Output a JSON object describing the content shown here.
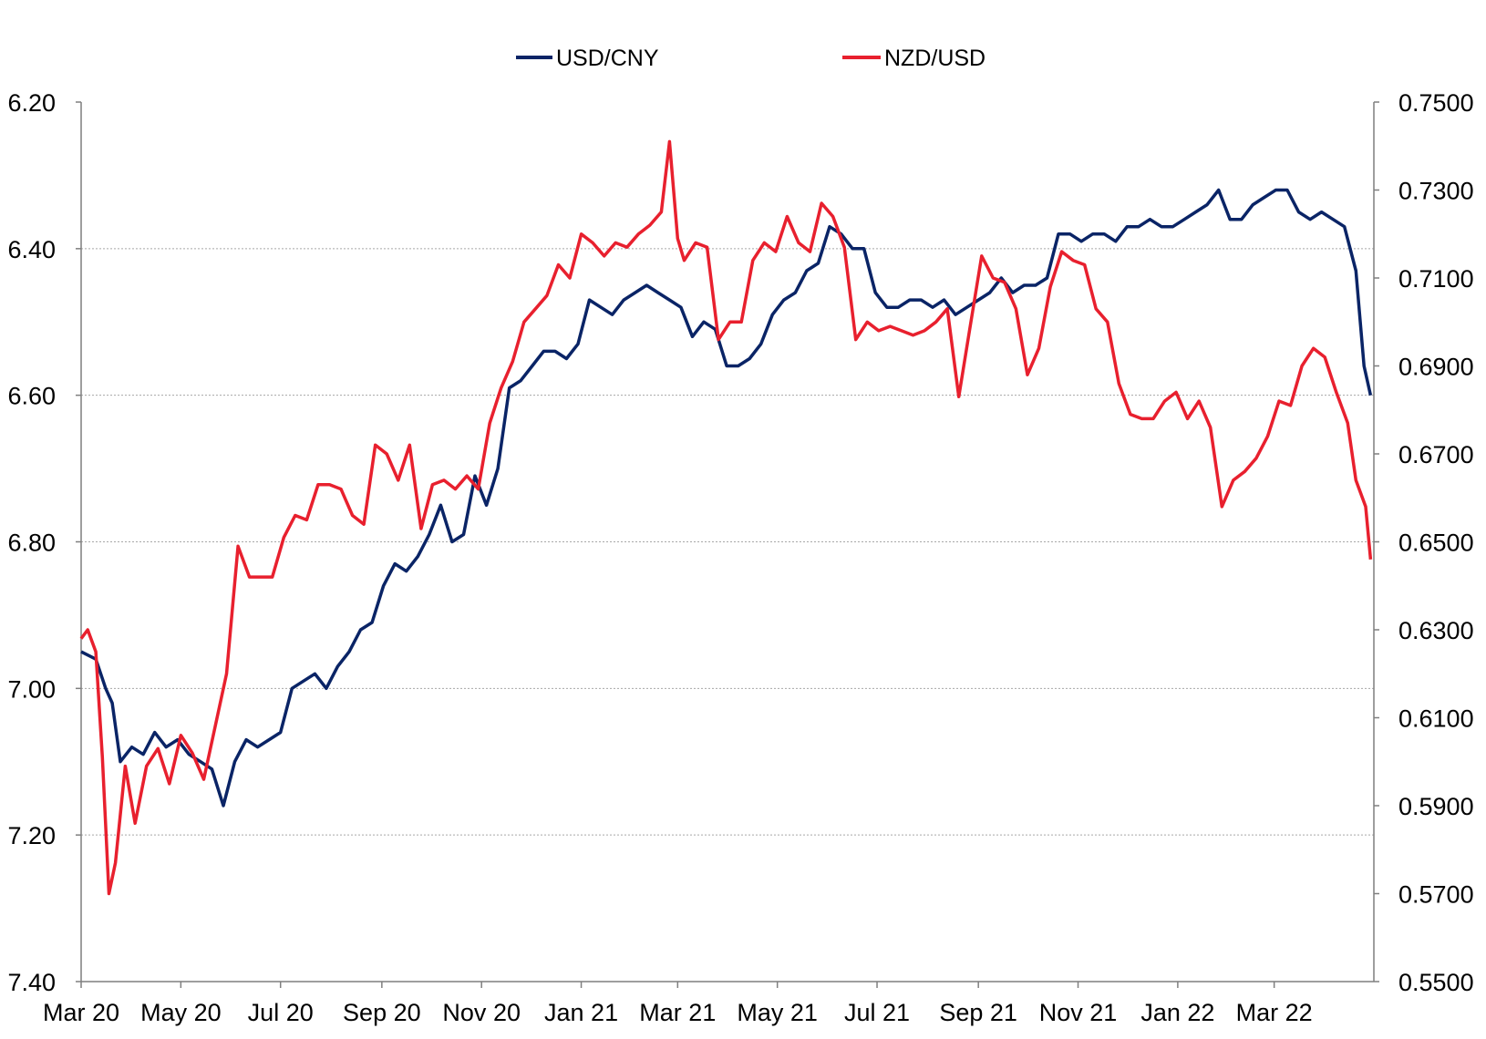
{
  "chart_data": {
    "type": "line",
    "title": "",
    "legend": {
      "placement": "top-center",
      "entries": [
        {
          "name": "USD/CNY",
          "color": "#0a2466"
        },
        {
          "name": "NZD/USD",
          "color": "#e8202e"
        }
      ]
    },
    "x_axis": {
      "ticks": [
        "Mar 20",
        "May 20",
        "Jul 20",
        "Sep 20",
        "Nov 20",
        "Jan 21",
        "Mar 21",
        "May 21",
        "Jul 21",
        "Sep 21",
        "Nov 21",
        "Jan 22",
        "Mar 22"
      ],
      "range": [
        "Mar 20",
        "Apr 22"
      ]
    },
    "y_left": {
      "series": "USD/CNY",
      "inverted": true,
      "range": [
        6.2,
        7.4
      ],
      "ticks": [
        "6.20",
        "6.40",
        "6.60",
        "6.80",
        "7.00",
        "7.20",
        "7.40"
      ]
    },
    "y_right": {
      "series": "NZD/USD",
      "range": [
        0.55,
        0.75
      ],
      "ticks": [
        "0.7500",
        "0.7300",
        "0.7100",
        "0.6900",
        "0.6700",
        "0.6500",
        "0.6300",
        "0.6100",
        "0.5900",
        "0.5700",
        "0.5500"
      ]
    },
    "grid": "horizontal dotted",
    "series": [
      {
        "name": "USD/CNY",
        "axis": "left",
        "color": "#0a2466",
        "points": [
          [
            "2020-03-01",
            6.95
          ],
          [
            "2020-03-10",
            6.96
          ],
          [
            "2020-03-16",
            7.0
          ],
          [
            "2020-03-20",
            7.02
          ],
          [
            "2020-03-25",
            7.1
          ],
          [
            "2020-04-01",
            7.08
          ],
          [
            "2020-04-08",
            7.09
          ],
          [
            "2020-04-15",
            7.06
          ],
          [
            "2020-04-22",
            7.08
          ],
          [
            "2020-04-29",
            7.07
          ],
          [
            "2020-05-06",
            7.09
          ],
          [
            "2020-05-13",
            7.1
          ],
          [
            "2020-05-20",
            7.11
          ],
          [
            "2020-05-27",
            7.16
          ],
          [
            "2020-06-03",
            7.1
          ],
          [
            "2020-06-10",
            7.07
          ],
          [
            "2020-06-17",
            7.08
          ],
          [
            "2020-06-24",
            7.07
          ],
          [
            "2020-07-01",
            7.06
          ],
          [
            "2020-07-08",
            7.0
          ],
          [
            "2020-07-15",
            6.99
          ],
          [
            "2020-07-22",
            6.98
          ],
          [
            "2020-07-29",
            7.0
          ],
          [
            "2020-08-05",
            6.97
          ],
          [
            "2020-08-12",
            6.95
          ],
          [
            "2020-08-19",
            6.92
          ],
          [
            "2020-08-26",
            6.91
          ],
          [
            "2020-09-02",
            6.86
          ],
          [
            "2020-09-09",
            6.83
          ],
          [
            "2020-09-16",
            6.84
          ],
          [
            "2020-09-23",
            6.82
          ],
          [
            "2020-09-30",
            6.79
          ],
          [
            "2020-10-07",
            6.75
          ],
          [
            "2020-10-14",
            6.8
          ],
          [
            "2020-10-21",
            6.79
          ],
          [
            "2020-10-28",
            6.71
          ],
          [
            "2020-11-04",
            6.75
          ],
          [
            "2020-11-11",
            6.7
          ],
          [
            "2020-11-18",
            6.59
          ],
          [
            "2020-11-25",
            6.58
          ],
          [
            "2020-12-02",
            6.56
          ],
          [
            "2020-12-09",
            6.54
          ],
          [
            "2020-12-16",
            6.54
          ],
          [
            "2020-12-23",
            6.55
          ],
          [
            "2020-12-30",
            6.53
          ],
          [
            "2021-01-06",
            6.47
          ],
          [
            "2021-01-13",
            6.48
          ],
          [
            "2021-01-20",
            6.49
          ],
          [
            "2021-01-27",
            6.47
          ],
          [
            "2021-02-03",
            6.46
          ],
          [
            "2021-02-10",
            6.45
          ],
          [
            "2021-02-17",
            6.46
          ],
          [
            "2021-02-24",
            6.47
          ],
          [
            "2021-03-03",
            6.48
          ],
          [
            "2021-03-10",
            6.52
          ],
          [
            "2021-03-17",
            6.5
          ],
          [
            "2021-03-24",
            6.51
          ],
          [
            "2021-03-31",
            6.56
          ],
          [
            "2021-04-07",
            6.56
          ],
          [
            "2021-04-14",
            6.55
          ],
          [
            "2021-04-21",
            6.53
          ],
          [
            "2021-04-28",
            6.49
          ],
          [
            "2021-05-05",
            6.47
          ],
          [
            "2021-05-12",
            6.46
          ],
          [
            "2021-05-19",
            6.43
          ],
          [
            "2021-05-26",
            6.42
          ],
          [
            "2021-06-02",
            6.37
          ],
          [
            "2021-06-09",
            6.38
          ],
          [
            "2021-06-16",
            6.4
          ],
          [
            "2021-06-23",
            6.4
          ],
          [
            "2021-06-30",
            6.46
          ],
          [
            "2021-07-07",
            6.48
          ],
          [
            "2021-07-14",
            6.48
          ],
          [
            "2021-07-21",
            6.47
          ],
          [
            "2021-07-28",
            6.47
          ],
          [
            "2021-08-04",
            6.48
          ],
          [
            "2021-08-11",
            6.47
          ],
          [
            "2021-08-18",
            6.49
          ],
          [
            "2021-08-25",
            6.48
          ],
          [
            "2021-09-01",
            6.47
          ],
          [
            "2021-09-08",
            6.46
          ],
          [
            "2021-09-15",
            6.44
          ],
          [
            "2021-09-22",
            6.46
          ],
          [
            "2021-09-29",
            6.45
          ],
          [
            "2021-10-06",
            6.45
          ],
          [
            "2021-10-13",
            6.44
          ],
          [
            "2021-10-20",
            6.38
          ],
          [
            "2021-10-27",
            6.38
          ],
          [
            "2021-11-03",
            6.39
          ],
          [
            "2021-11-10",
            6.38
          ],
          [
            "2021-11-17",
            6.38
          ],
          [
            "2021-11-24",
            6.39
          ],
          [
            "2021-12-01",
            6.37
          ],
          [
            "2021-12-08",
            6.37
          ],
          [
            "2021-12-15",
            6.36
          ],
          [
            "2021-12-22",
            6.37
          ],
          [
            "2021-12-29",
            6.37
          ],
          [
            "2022-01-05",
            6.36
          ],
          [
            "2022-01-12",
            6.35
          ],
          [
            "2022-01-19",
            6.34
          ],
          [
            "2022-01-26",
            6.32
          ],
          [
            "2022-02-02",
            6.36
          ],
          [
            "2022-02-09",
            6.36
          ],
          [
            "2022-02-16",
            6.34
          ],
          [
            "2022-02-23",
            6.33
          ],
          [
            "2022-03-02",
            6.32
          ],
          [
            "2022-03-09",
            6.32
          ],
          [
            "2022-03-16",
            6.35
          ],
          [
            "2022-03-23",
            6.36
          ],
          [
            "2022-03-30",
            6.35
          ],
          [
            "2022-04-06",
            6.36
          ],
          [
            "2022-04-13",
            6.37
          ],
          [
            "2022-04-20",
            6.43
          ],
          [
            "2022-04-25",
            6.56
          ],
          [
            "2022-04-29",
            6.6
          ]
        ]
      },
      {
        "name": "NZD/USD",
        "axis": "right",
        "color": "#e8202e",
        "points": [
          [
            "2020-03-01",
            0.628
          ],
          [
            "2020-03-05",
            0.63
          ],
          [
            "2020-03-10",
            0.625
          ],
          [
            "2020-03-14",
            0.601
          ],
          [
            "2020-03-18",
            0.57
          ],
          [
            "2020-03-22",
            0.577
          ],
          [
            "2020-03-28",
            0.599
          ],
          [
            "2020-04-03",
            0.586
          ],
          [
            "2020-04-10",
            0.599
          ],
          [
            "2020-04-17",
            0.603
          ],
          [
            "2020-04-24",
            0.595
          ],
          [
            "2020-05-01",
            0.606
          ],
          [
            "2020-05-08",
            0.602
          ],
          [
            "2020-05-15",
            0.596
          ],
          [
            "2020-05-22",
            0.608
          ],
          [
            "2020-05-29",
            0.62
          ],
          [
            "2020-06-05",
            0.649
          ],
          [
            "2020-06-12",
            0.642
          ],
          [
            "2020-06-19",
            0.642
          ],
          [
            "2020-06-26",
            0.642
          ],
          [
            "2020-07-03",
            0.651
          ],
          [
            "2020-07-10",
            0.656
          ],
          [
            "2020-07-17",
            0.655
          ],
          [
            "2020-07-24",
            0.663
          ],
          [
            "2020-07-31",
            0.663
          ],
          [
            "2020-08-07",
            0.662
          ],
          [
            "2020-08-14",
            0.656
          ],
          [
            "2020-08-21",
            0.654
          ],
          [
            "2020-08-28",
            0.672
          ],
          [
            "2020-09-04",
            0.67
          ],
          [
            "2020-09-11",
            0.664
          ],
          [
            "2020-09-18",
            0.672
          ],
          [
            "2020-09-25",
            0.653
          ],
          [
            "2020-10-02",
            0.663
          ],
          [
            "2020-10-09",
            0.664
          ],
          [
            "2020-10-16",
            0.662
          ],
          [
            "2020-10-23",
            0.665
          ],
          [
            "2020-10-30",
            0.662
          ],
          [
            "2020-11-06",
            0.677
          ],
          [
            "2020-11-13",
            0.685
          ],
          [
            "2020-11-20",
            0.691
          ],
          [
            "2020-11-27",
            0.7
          ],
          [
            "2020-12-04",
            0.703
          ],
          [
            "2020-12-11",
            0.706
          ],
          [
            "2020-12-18",
            0.713
          ],
          [
            "2020-12-25",
            0.71
          ],
          [
            "2021-01-01",
            0.72
          ],
          [
            "2021-01-08",
            0.718
          ],
          [
            "2021-01-15",
            0.715
          ],
          [
            "2021-01-22",
            0.718
          ],
          [
            "2021-01-29",
            0.717
          ],
          [
            "2021-02-05",
            0.72
          ],
          [
            "2021-02-12",
            0.722
          ],
          [
            "2021-02-19",
            0.725
          ],
          [
            "2021-02-24",
            0.741
          ],
          [
            "2021-03-01",
            0.719
          ],
          [
            "2021-03-05",
            0.714
          ],
          [
            "2021-03-12",
            0.718
          ],
          [
            "2021-03-19",
            0.717
          ],
          [
            "2021-03-26",
            0.696
          ],
          [
            "2021-04-02",
            0.7
          ],
          [
            "2021-04-09",
            0.7
          ],
          [
            "2021-04-16",
            0.714
          ],
          [
            "2021-04-23",
            0.718
          ],
          [
            "2021-04-30",
            0.716
          ],
          [
            "2021-05-07",
            0.724
          ],
          [
            "2021-05-14",
            0.718
          ],
          [
            "2021-05-21",
            0.716
          ],
          [
            "2021-05-28",
            0.727
          ],
          [
            "2021-06-04",
            0.724
          ],
          [
            "2021-06-11",
            0.717
          ],
          [
            "2021-06-18",
            0.696
          ],
          [
            "2021-06-25",
            0.7
          ],
          [
            "2021-07-02",
            0.698
          ],
          [
            "2021-07-09",
            0.699
          ],
          [
            "2021-07-16",
            0.698
          ],
          [
            "2021-07-23",
            0.697
          ],
          [
            "2021-07-30",
            0.698
          ],
          [
            "2021-08-06",
            0.7
          ],
          [
            "2021-08-13",
            0.703
          ],
          [
            "2021-08-20",
            0.683
          ],
          [
            "2021-08-27",
            0.699
          ],
          [
            "2021-09-03",
            0.715
          ],
          [
            "2021-09-10",
            0.71
          ],
          [
            "2021-09-17",
            0.709
          ],
          [
            "2021-09-24",
            0.703
          ],
          [
            "2021-10-01",
            0.688
          ],
          [
            "2021-10-08",
            0.694
          ],
          [
            "2021-10-15",
            0.708
          ],
          [
            "2021-10-22",
            0.716
          ],
          [
            "2021-10-29",
            0.714
          ],
          [
            "2021-11-05",
            0.713
          ],
          [
            "2021-11-12",
            0.703
          ],
          [
            "2021-11-19",
            0.7
          ],
          [
            "2021-11-26",
            0.686
          ],
          [
            "2021-12-03",
            0.679
          ],
          [
            "2021-12-10",
            0.678
          ],
          [
            "2021-12-17",
            0.678
          ],
          [
            "2021-12-24",
            0.682
          ],
          [
            "2021-12-31",
            0.684
          ],
          [
            "2022-01-07",
            0.678
          ],
          [
            "2022-01-14",
            0.682
          ],
          [
            "2022-01-21",
            0.676
          ],
          [
            "2022-01-28",
            0.658
          ],
          [
            "2022-02-04",
            0.664
          ],
          [
            "2022-02-11",
            0.666
          ],
          [
            "2022-02-18",
            0.669
          ],
          [
            "2022-02-25",
            0.674
          ],
          [
            "2022-03-04",
            0.682
          ],
          [
            "2022-03-11",
            0.681
          ],
          [
            "2022-03-18",
            0.69
          ],
          [
            "2022-03-25",
            0.694
          ],
          [
            "2022-04-01",
            0.692
          ],
          [
            "2022-04-08",
            0.684
          ],
          [
            "2022-04-15",
            0.677
          ],
          [
            "2022-04-20",
            0.664
          ],
          [
            "2022-04-26",
            0.658
          ],
          [
            "2022-04-29",
            0.646
          ]
        ]
      }
    ]
  }
}
